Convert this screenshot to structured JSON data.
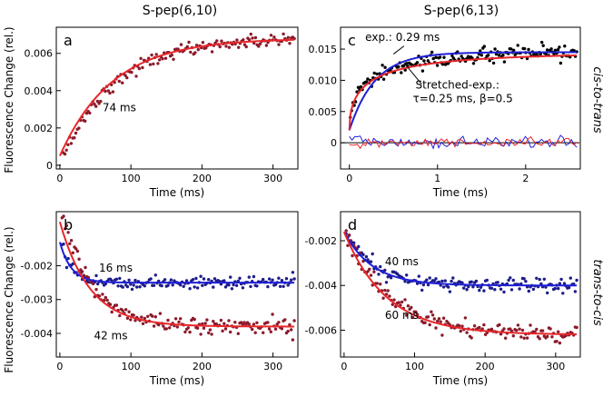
{
  "figure": {
    "column_titles": [
      "S-pep(6,10)",
      "S-pep(6,13)"
    ],
    "row_labels": [
      "cis-to-trans",
      "trans-to-cis"
    ],
    "shared_ylabel": "Fluorescence Change (rel.)"
  },
  "chart_data": [
    {
      "id": "a",
      "type": "scatter",
      "panel_label": "a",
      "xlabel": "Time (ms)",
      "ylabel": "Fluorescence Change (rel.)",
      "xlim": [
        -5,
        335
      ],
      "ylim": [
        -0.0002,
        0.0074
      ],
      "xticks": [
        0,
        100,
        200,
        300
      ],
      "xtick_labels": [
        "0",
        "100",
        "200",
        "300"
      ],
      "yticks": [
        0,
        0.002,
        0.004,
        0.006
      ],
      "ytick_labels": [
        "0",
        "0.002",
        "0.004",
        "0.006"
      ],
      "series": [
        {
          "name": "data",
          "kind": "points",
          "color": "#8b1a2a",
          "model": "exp",
          "t0": 5,
          "a": 0.0005,
          "b": 0.0068,
          "tau": 74,
          "noise": 0.00018,
          "xrange": [
            5,
            330
          ],
          "n": 150
        }
      ],
      "fits": [
        {
          "name": "exp fit",
          "color": "#e8262a",
          "model": "exp",
          "a": 0.0005,
          "b": 0.0068,
          "tau": 74,
          "t0": 0,
          "xrange": [
            0,
            330
          ]
        }
      ],
      "annotations": [
        {
          "text": "74 ms",
          "x": 60,
          "y": 0.0029
        }
      ]
    },
    {
      "id": "c",
      "type": "scatter",
      "panel_label": "c",
      "xlabel": "Time (ms)",
      "ylabel": "",
      "xlim": [
        -0.1,
        2.62
      ],
      "ylim": [
        -0.0042,
        0.0185
      ],
      "xticks": [
        0,
        1,
        2
      ],
      "xtick_labels": [
        "0",
        "1",
        "2"
      ],
      "yticks": [
        0,
        0.005,
        0.01,
        0.015
      ],
      "ytick_labels": [
        "0",
        "0.005",
        "0.010",
        "0.015"
      ],
      "series": [
        {
          "name": "data",
          "kind": "points",
          "color": "#000000",
          "model": "stretched",
          "a": 0.0015,
          "b": 0.015,
          "tau": 0.25,
          "beta": 0.5,
          "noise": 0.0006,
          "xrange": [
            0.01,
            2.58
          ],
          "n": 170
        }
      ],
      "fits": [
        {
          "name": "exp.",
          "color": "#1f1fd6",
          "model": "exp",
          "a": 0.002,
          "b": 0.0145,
          "tau": 0.29,
          "t0": 0,
          "xrange": [
            0,
            2.58
          ]
        },
        {
          "name": "stretched",
          "color": "#e8262a",
          "model": "stretched",
          "a": 0.002,
          "b": 0.0145,
          "tau": 0.25,
          "beta": 0.5,
          "xrange": [
            0,
            2.58
          ]
        }
      ],
      "residuals": [
        {
          "name": "residual exp",
          "color": "#1f1fd6",
          "amp": 0.0009,
          "n": 85,
          "seed": 77,
          "xrange": [
            0,
            2.58
          ]
        },
        {
          "name": "residual stretched",
          "color": "#e8262a",
          "amp": 0.0007,
          "n": 85,
          "seed": 31,
          "xrange": [
            0,
            2.58
          ]
        }
      ],
      "zero_line": true,
      "annotations": [
        {
          "text": "exp.: 0.29 ms",
          "x": 0.18,
          "y": 0.0163
        },
        {
          "text": "Stretched-exp.:",
          "x": 0.75,
          "y": 0.0087
        },
        {
          "text": "τ=0.25 ms, β=0.5",
          "x": 0.72,
          "y": 0.0065
        }
      ]
    },
    {
      "id": "b",
      "type": "scatter",
      "panel_label": "b",
      "xlabel": "Time (ms)",
      "ylabel": "Fluorescence Change (rel.)",
      "xlim": [
        -5,
        335
      ],
      "ylim": [
        -0.0047,
        -0.0004
      ],
      "xticks": [
        0,
        100,
        200,
        300
      ],
      "xtick_labels": [
        "0",
        "100",
        "200",
        "300"
      ],
      "yticks": [
        -0.002,
        -0.003,
        -0.004
      ],
      "ytick_labels": [
        "-0.002",
        "-0.003",
        "-0.004"
      ],
      "series": [
        {
          "name": "fast",
          "kind": "points",
          "color": "#1c1c8a",
          "model": "exp",
          "t0": 3,
          "a": -0.0013,
          "b": -0.0025,
          "tau": 16,
          "noise": 0.0001,
          "xrange": [
            3,
            330
          ],
          "n": 150
        },
        {
          "name": "slow",
          "kind": "points",
          "color": "#8b1a2a",
          "model": "exp",
          "t0": 3,
          "a": -0.0005,
          "b": -0.0038,
          "tau": 42,
          "noise": 0.00013,
          "xrange": [
            3,
            330
          ],
          "n": 150
        }
      ],
      "fits": [
        {
          "name": "16 ms fit",
          "color": "#1f1fd6",
          "model": "exp",
          "a": -0.0013,
          "b": -0.0025,
          "tau": 16,
          "t0": 0,
          "xrange": [
            0,
            330
          ]
        },
        {
          "name": "42 ms fit",
          "color": "#e8262a",
          "model": "exp",
          "a": -0.0007,
          "b": -0.0038,
          "tau": 42,
          "t0": 0,
          "xrange": [
            0,
            330
          ]
        }
      ],
      "annotations": [
        {
          "text": "16 ms",
          "x": 55,
          "y": -0.00218
        },
        {
          "text": "42 ms",
          "x": 48,
          "y": -0.00418
        }
      ]
    },
    {
      "id": "d",
      "type": "scatter",
      "panel_label": "d",
      "xlabel": "Time (ms)",
      "ylabel": "",
      "xlim": [
        -5,
        335
      ],
      "ylim": [
        -0.0072,
        -0.0007
      ],
      "xticks": [
        0,
        100,
        200,
        300
      ],
      "xtick_labels": [
        "0",
        "100",
        "200",
        "300"
      ],
      "yticks": [
        -0.002,
        -0.004,
        -0.006
      ],
      "ytick_labels": [
        "-0.002",
        "-0.004",
        "-0.006"
      ],
      "series": [
        {
          "name": "fast",
          "kind": "points",
          "color": "#1c1c8a",
          "model": "exp",
          "t0": 3,
          "a": -0.0016,
          "b": -0.004,
          "tau": 40,
          "noise": 0.00016,
          "xrange": [
            3,
            330
          ],
          "n": 150
        },
        {
          "name": "slow",
          "kind": "points",
          "color": "#8b1a2a",
          "model": "exp",
          "t0": 3,
          "a": -0.0016,
          "b": -0.0062,
          "tau": 60,
          "noise": 0.00017,
          "xrange": [
            3,
            330
          ],
          "n": 150
        }
      ],
      "fits": [
        {
          "name": "40 ms fit",
          "color": "#1f1fd6",
          "model": "exp",
          "a": -0.0016,
          "b": -0.004,
          "tau": 40,
          "t0": 0,
          "xrange": [
            0,
            330
          ]
        },
        {
          "name": "60 ms fit",
          "color": "#e8262a",
          "model": "exp",
          "a": -0.0016,
          "b": -0.0062,
          "tau": 60,
          "t0": 0,
          "xrange": [
            0,
            330
          ]
        }
      ],
      "annotations": [
        {
          "text": "40 ms",
          "x": 58,
          "y": -0.0031
        },
        {
          "text": "60 ms",
          "x": 58,
          "y": -0.0055
        }
      ]
    }
  ]
}
